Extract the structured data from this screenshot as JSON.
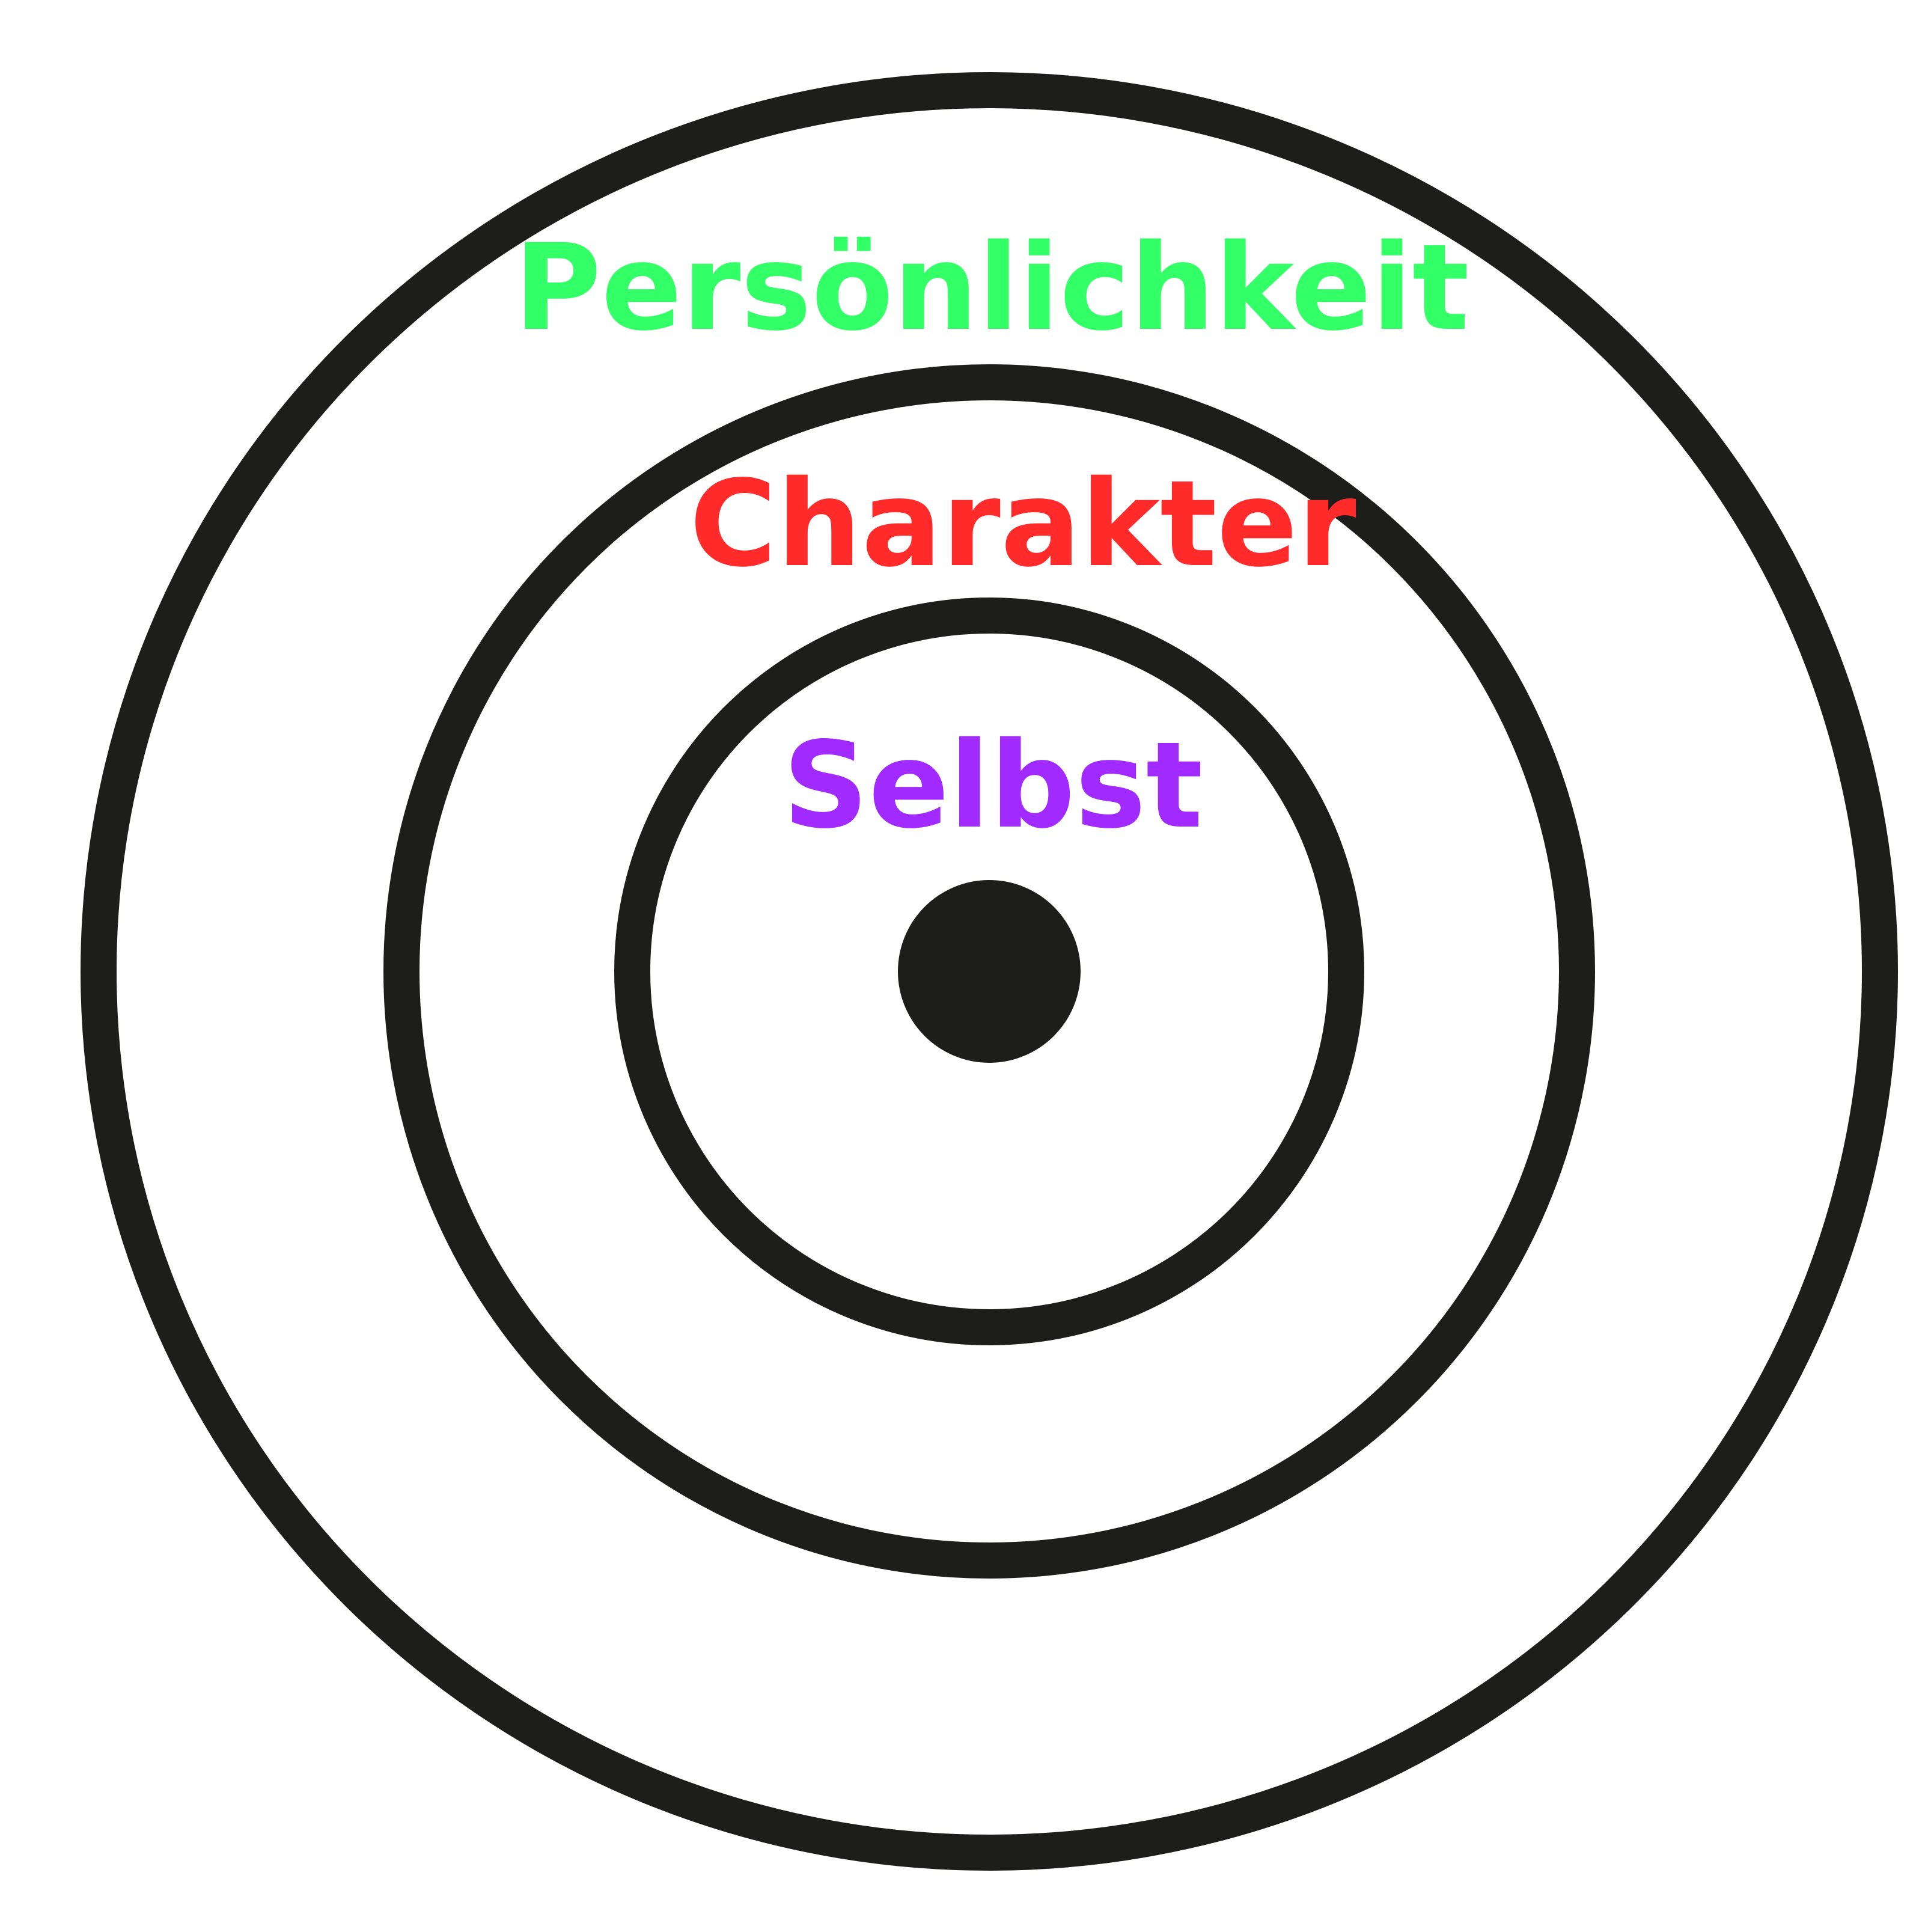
{
  "labels": {
    "outer": "Persönlichkeit",
    "middle": "Charakter",
    "inner": "Selbst"
  },
  "colors": {
    "outer_label": "#33ff66",
    "middle_label": "#ff2a2a",
    "inner_label": "#a02aff",
    "ring": "#1d1d1b",
    "center_dot": "#1d1d1b",
    "background": "#ffffff"
  }
}
